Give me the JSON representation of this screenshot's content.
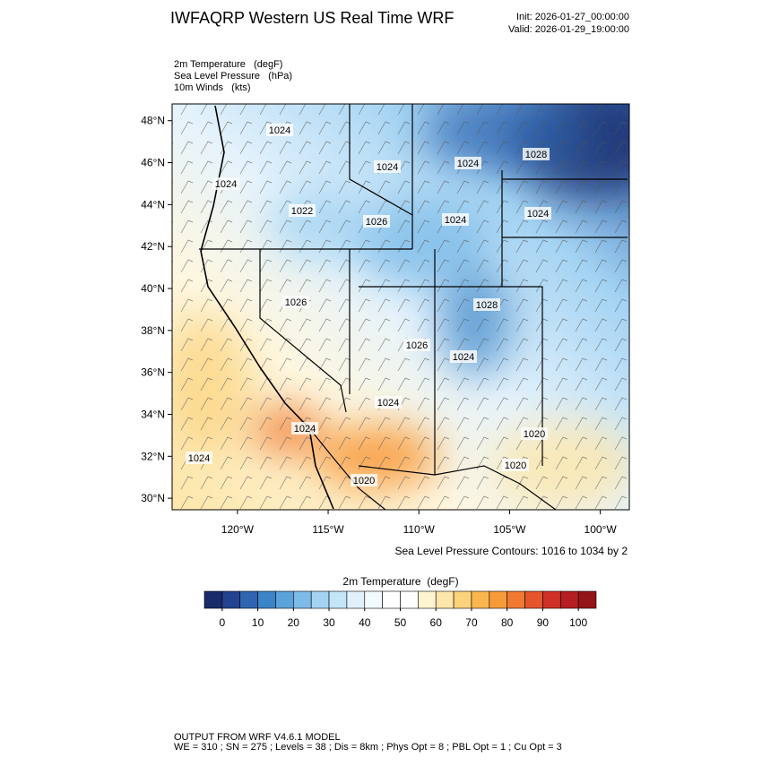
{
  "header": {
    "title": "IWFAQRP Western US Real Time WRF",
    "init": "Init: 2026-01-27_00:00:00",
    "valid": "Valid: 2026-01-29_19:00:00"
  },
  "fields": [
    "2m Temperature   (degF)",
    "Sea Level Pressure   (hPa)",
    "10m Winds   (kts)"
  ],
  "map": {
    "xlim": [
      -123.6,
      -98.4
    ],
    "ylim": [
      29.45,
      48.8
    ],
    "lat_ticks": [
      {
        "value": 30,
        "label": "30°N"
      },
      {
        "value": 32,
        "label": "32°N"
      },
      {
        "value": 34,
        "label": "34°N"
      },
      {
        "value": 36,
        "label": "36°N"
      },
      {
        "value": 38,
        "label": "38°N"
      },
      {
        "value": 40,
        "label": "40°N"
      },
      {
        "value": 42,
        "label": "42°N"
      },
      {
        "value": 44,
        "label": "44°N"
      },
      {
        "value": 46,
        "label": "46°N"
      },
      {
        "value": 48,
        "label": "48°N"
      }
    ],
    "lon_ticks": [
      {
        "value": -120,
        "label": "120°W"
      },
      {
        "value": -115,
        "label": "115°W"
      },
      {
        "value": -110,
        "label": "110°W"
      },
      {
        "value": -105,
        "label": "105°W"
      },
      {
        "value": -100,
        "label": "100°W"
      }
    ],
    "contour_labels": [
      1024,
      1024,
      1024,
      1028,
      1024,
      1022,
      1026,
      1024,
      1024,
      1026,
      1028,
      1026,
      1024,
      1024,
      1020,
      1024,
      1024,
      1020,
      1020
    ],
    "contour_note": "Sea Level Pressure Contours: 1016 to 1034 by 2"
  },
  "colorbar": {
    "title": "2m Temperature  (degF)",
    "range": [
      -5,
      105
    ],
    "ticks": [
      0,
      10,
      20,
      30,
      40,
      50,
      60,
      70,
      80,
      90,
      100
    ],
    "colors": [
      "#1b2a6b",
      "#23428f",
      "#2f64b0",
      "#3c84c8",
      "#5aa2da",
      "#7dbbe8",
      "#a3d3f3",
      "#c4e4f8",
      "#e0f1fc",
      "#f3fafe",
      "#ffffff",
      "#ffffff",
      "#fef4d2",
      "#fde6a9",
      "#fcd27c",
      "#fab64e",
      "#f79a3a",
      "#f07a32",
      "#e4552c",
      "#cf3128",
      "#b61e23",
      "#951419"
    ]
  },
  "footer": [
    "OUTPUT FROM WRF V4.6.1 MODEL",
    "WE = 310 ; SN = 275 ; Levels = 38 ; Dis = 8km ; Phys Opt = 8 ; PBL Opt = 1 ; Cu Opt = 3"
  ]
}
